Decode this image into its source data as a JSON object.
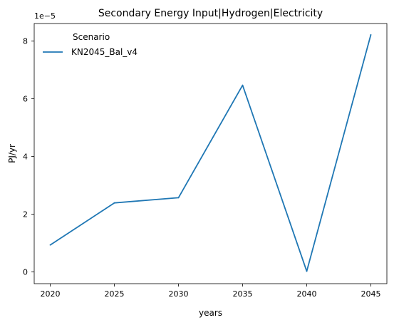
{
  "chart_data": {
    "type": "line",
    "title": "Secondary Energy Input|Hydrogen|Electricity",
    "xlabel": "years",
    "ylabel": "PJ/yr",
    "y_offset_label": "1e−5",
    "x": [
      2020,
      2025,
      2030,
      2035,
      2040,
      2045
    ],
    "x_ticks": [
      "2020",
      "2025",
      "2030",
      "2035",
      "2040",
      "2045"
    ],
    "y_ticks": [
      "0",
      "2",
      "4",
      "6",
      "8"
    ],
    "y_tick_values": [
      0,
      2,
      4,
      6,
      8
    ],
    "xlim": [
      2018.75,
      2046.25
    ],
    "ylim": [
      -0.41,
      8.61
    ],
    "y_scale_note": "values in units of 1e-5",
    "series": [
      {
        "name": "KN2045_Bal_v4",
        "color": "#1f77b4",
        "values": [
          0.93,
          2.39,
          2.57,
          6.47,
          0.02,
          8.22
        ]
      }
    ],
    "legend": {
      "title": "Scenario",
      "placement": "top-left"
    },
    "grid": false
  }
}
